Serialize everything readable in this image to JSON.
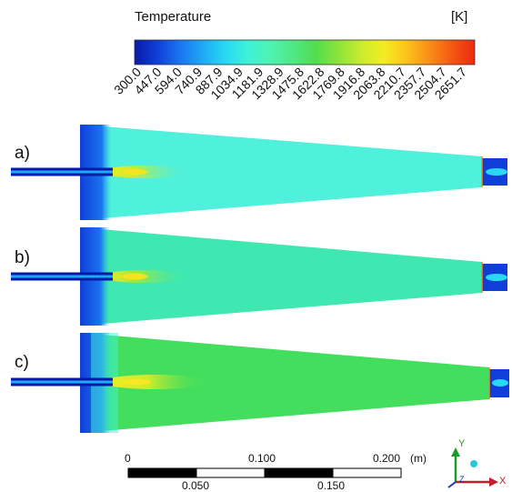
{
  "legend": {
    "title": "Temperature",
    "unit": "[K]",
    "ticks": [
      "300.0",
      "447.0",
      "594.0",
      "740.9",
      "887.9",
      "1034.9",
      "1181.9",
      "1328.9",
      "1475.8",
      "1622.8",
      "1769.8",
      "1916.8",
      "2063.8",
      "2210.7",
      "2357.7",
      "2504.7",
      "2651.7"
    ],
    "colormap": [
      "#0a1aa8",
      "#0f3fd8",
      "#1a74f0",
      "#1eaaf6",
      "#27d9f2",
      "#3ef2d8",
      "#4ef3b0",
      "#4fe882",
      "#52dd4e",
      "#8fe33a",
      "#c9ec2e",
      "#f4ec22",
      "#fbc21c",
      "#fa8e16",
      "#f55712",
      "#ee2a10"
    ]
  },
  "panels": [
    {
      "label": "a)",
      "body_color": "#4ff0dc",
      "core_color": "#d4f25a"
    },
    {
      "label": "b)",
      "body_color": "#3fe8b0",
      "core_color": "#e2ee3a"
    },
    {
      "label": "c)",
      "body_color": "#44de5e",
      "core_color": "#eee83a"
    }
  ],
  "scale_bar": {
    "top_labels": [
      "0",
      "0.100",
      "0.200"
    ],
    "bottom_labels": [
      "0.050",
      "0.150"
    ],
    "unit": "(m)"
  },
  "triad": {
    "y_label": "Y",
    "z_label": "Z",
    "x_label": "X"
  }
}
